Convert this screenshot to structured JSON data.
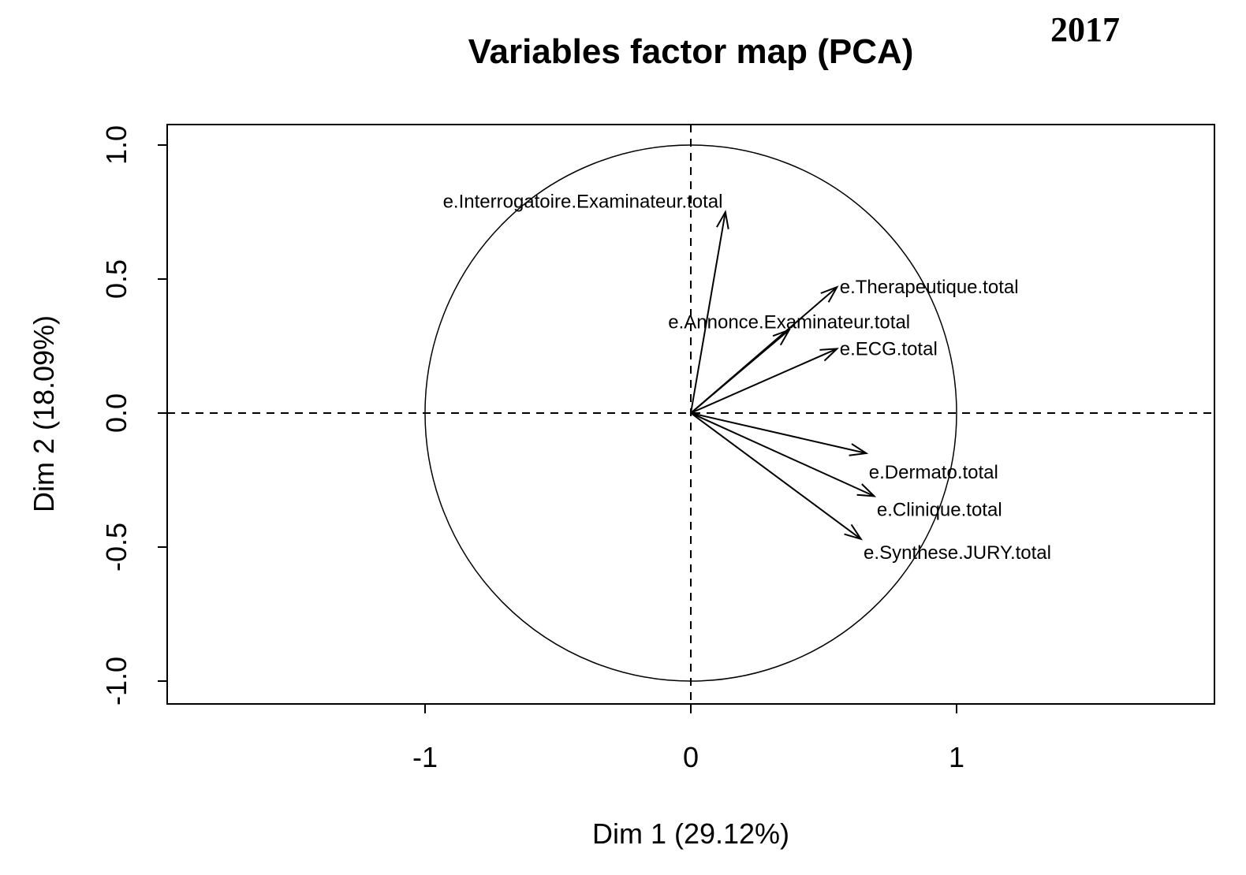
{
  "chart_data": {
    "type": "scatter",
    "title": "Variables factor map (PCA)",
    "corner_label": "2017",
    "xlabel": "Dim 1 (29.12%)",
    "ylabel": "Dim 2 (18.09%)",
    "xlim": [
      -1.97,
      1.97
    ],
    "ylim": [
      -1.08,
      1.08
    ],
    "x_ticks": [
      -1,
      0,
      1
    ],
    "x_tick_labels": [
      "-1",
      "0",
      "1"
    ],
    "y_ticks": [
      -1.0,
      -0.5,
      0.0,
      0.5,
      1.0
    ],
    "y_tick_labels": [
      "-1.0",
      "-0.5",
      "0.0",
      "0.5",
      "1.0"
    ],
    "unit_circle": true,
    "reference_lines": [
      0,
      0
    ],
    "variables": [
      {
        "name": "e.Interrogatoire.Examinateur.total",
        "x": 0.13,
        "y": 0.75,
        "label_anchor": "end",
        "label_dx": -0.01,
        "label_dy": 0.04
      },
      {
        "name": "e.Therapeutique.total",
        "x": 0.55,
        "y": 0.47,
        "label_anchor": "start",
        "label_dx": 0.01,
        "label_dy": 0.0
      },
      {
        "name": "e.Annonce.Examinateur.total",
        "x": 0.37,
        "y": 0.31,
        "label_anchor": "middle",
        "label_dx": 0.0,
        "label_dy": 0.03
      },
      {
        "name": "e.ECG.total",
        "x": 0.55,
        "y": 0.24,
        "label_anchor": "start",
        "label_dx": 0.01,
        "label_dy": 0.0
      },
      {
        "name": "e.Dermato.total",
        "x": 0.66,
        "y": -0.15,
        "label_anchor": "start",
        "label_dx": 0.01,
        "label_dy": -0.07
      },
      {
        "name": "e.Clinique.total",
        "x": 0.69,
        "y": -0.31,
        "label_anchor": "start",
        "label_dx": 0.01,
        "label_dy": -0.05
      },
      {
        "name": "e.Synthese.JURY.total",
        "x": 0.64,
        "y": -0.47,
        "label_anchor": "start",
        "label_dx": 0.01,
        "label_dy": -0.05
      }
    ]
  }
}
